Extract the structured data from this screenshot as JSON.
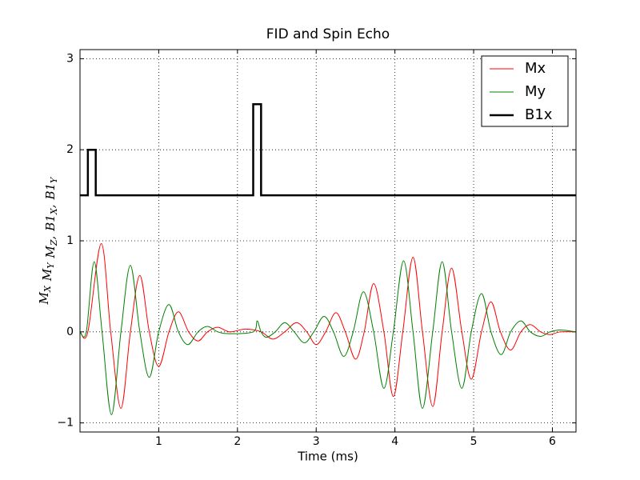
{
  "chart_data": {
    "type": "line",
    "title": "FID and Spin Echo",
    "xlabel": "Time (ms)",
    "ylabel_parts": [
      {
        "base": "M",
        "sub": "X"
      },
      {
        "base": "M",
        "sub": "Y"
      },
      {
        "base": "M",
        "sub": "Z",
        "sep": ","
      },
      {
        "base": "B1",
        "sub": "X",
        "sep": ","
      },
      {
        "base": "B1",
        "sub": "Y"
      }
    ],
    "xlim": [
      0,
      6.3
    ],
    "ylim": [
      -1.1,
      3.1
    ],
    "xticks": [
      1,
      2,
      3,
      4,
      5,
      6
    ],
    "yticks": [
      {
        "value": -1,
        "label": "−1"
      },
      0,
      1,
      2,
      3
    ],
    "grid": true,
    "legend": "upper right",
    "series": [
      {
        "name": "Mx",
        "color": "#ff0000",
        "linewidth": 1,
        "smooth": true,
        "x": [
          0,
          0.1,
          0.27,
          0.39,
          0.52,
          0.64,
          0.76,
          0.88,
          1.0,
          1.13,
          1.25,
          1.38,
          1.5,
          1.62,
          1.75,
          1.9,
          2.1,
          2.3,
          2.45,
          2.6,
          2.75,
          2.88,
          3.0,
          3.12,
          3.25,
          3.37,
          3.5,
          3.61,
          3.73,
          3.86,
          3.98,
          4.1,
          4.23,
          4.35,
          4.48,
          4.6,
          4.72,
          4.85,
          4.97,
          5.1,
          5.22,
          5.34,
          5.47,
          5.6,
          5.72,
          5.85,
          5.97,
          6.1,
          6.3
        ],
        "values": [
          0,
          0,
          0.97,
          0,
          -0.84,
          0,
          0.62,
          0,
          -0.38,
          0,
          0.22,
          0,
          -0.1,
          0,
          0.05,
          0,
          0.03,
          0,
          -0.08,
          0,
          0.1,
          0,
          -0.14,
          0,
          0.21,
          0,
          -0.3,
          0,
          0.53,
          0,
          -0.71,
          0,
          0.82,
          0,
          -0.82,
          0,
          0.7,
          0,
          -0.52,
          0,
          0.33,
          0,
          -0.2,
          0,
          0.08,
          0,
          -0.03,
          0,
          0
        ]
      },
      {
        "name": "My",
        "color": "#008000",
        "linewidth": 1,
        "smooth": true,
        "x": [
          0,
          0.08,
          0.18,
          0.28,
          0.4,
          0.52,
          0.64,
          0.76,
          0.88,
          1.0,
          1.13,
          1.25,
          1.37,
          1.5,
          1.62,
          1.75,
          1.9,
          2.2,
          2.25,
          2.3,
          2.37,
          2.48,
          2.6,
          2.72,
          2.85,
          2.97,
          3.1,
          3.22,
          3.35,
          3.47,
          3.6,
          3.73,
          3.86,
          3.98,
          4.11,
          4.23,
          4.35,
          4.48,
          4.6,
          4.72,
          4.85,
          4.97,
          5.1,
          5.22,
          5.35,
          5.47,
          5.6,
          5.72,
          5.85,
          5.97,
          6.1,
          6.3
        ],
        "values": [
          0,
          0,
          0.77,
          0,
          -0.91,
          0,
          0.73,
          0,
          -0.5,
          0,
          0.3,
          0,
          -0.14,
          0,
          0.06,
          0,
          -0.02,
          0,
          0.12,
          0,
          -0.06,
          0,
          0.1,
          0,
          -0.12,
          0,
          0.17,
          0,
          -0.27,
          0,
          0.44,
          0,
          -0.62,
          0,
          0.78,
          0,
          -0.84,
          0,
          0.77,
          0,
          -0.62,
          0,
          0.42,
          0,
          -0.25,
          0,
          0.12,
          0,
          -0.05,
          0,
          0.02,
          0
        ]
      },
      {
        "name": "B1x",
        "color": "#000000",
        "linewidth": 2.5,
        "smooth": false,
        "x": [
          0,
          0.1,
          0.1,
          0.2,
          0.2,
          2.2,
          2.2,
          2.3,
          2.3,
          6.3
        ],
        "values": [
          1.5,
          1.5,
          2,
          2,
          1.5,
          1.5,
          2.5,
          2.5,
          1.5,
          1.5
        ]
      }
    ]
  }
}
